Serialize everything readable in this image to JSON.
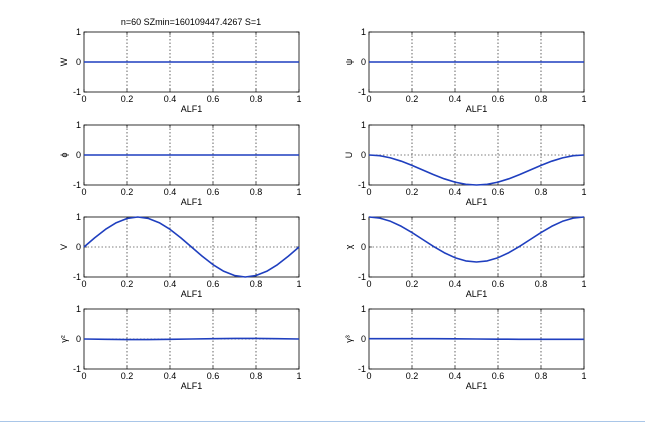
{
  "figure": {
    "title": "n=60 SZmin=160109447.4267 S=1"
  },
  "colors": {
    "line": "#1f3fbf",
    "axes": "#000000",
    "grid": "#000000",
    "background": "#ffffff"
  },
  "chart_data": [
    {
      "type": "line",
      "title": "n=60 SZmin=160109447.4267 S=1",
      "xlabel": "ALF1",
      "ylabel": "W",
      "xlim": [
        0,
        1
      ],
      "ylim": [
        -1,
        1
      ],
      "xticks": [
        "0",
        "0.2",
        "0.4",
        "0.6",
        "0.8",
        "1"
      ],
      "yticks": [
        "-1",
        "0",
        "1"
      ],
      "grid": "x-dotted-with-zero-line",
      "x": [
        0,
        1
      ],
      "y": [
        0,
        0
      ]
    },
    {
      "type": "line",
      "title": "",
      "xlabel": "ALF1",
      "ylabel": "ψ",
      "xlim": [
        0,
        1
      ],
      "ylim": [
        -1,
        1
      ],
      "xticks": [
        "0",
        "0.2",
        "0.4",
        "0.6",
        "0.8",
        "1"
      ],
      "yticks": [
        "-1",
        "0",
        "1"
      ],
      "grid": "x-dotted-with-zero-line",
      "x": [
        0,
        1
      ],
      "y": [
        0,
        0
      ]
    },
    {
      "type": "line",
      "title": "",
      "xlabel": "ALF1",
      "ylabel": "ϕ",
      "xlim": [
        0,
        1
      ],
      "ylim": [
        -1,
        1
      ],
      "xticks": [
        "0",
        "0.2",
        "0.4",
        "0.6",
        "0.8",
        "1"
      ],
      "yticks": [
        "-1",
        "0",
        "1"
      ],
      "grid": "x-dotted-with-zero-line",
      "x": [
        0,
        1
      ],
      "y": [
        0,
        0
      ]
    },
    {
      "type": "line",
      "title": "",
      "xlabel": "ALF1",
      "ylabel": "U",
      "xlim": [
        0,
        1
      ],
      "ylim": [
        -1,
        1
      ],
      "xticks": [
        "0",
        "0.2",
        "0.4",
        "0.6",
        "0.8",
        "1"
      ],
      "yticks": [
        "-1",
        "0",
        "1"
      ],
      "grid": "x-dotted-with-zero-line",
      "x": [
        0,
        0.05,
        0.1,
        0.15,
        0.2,
        0.25,
        0.3,
        0.35,
        0.4,
        0.45,
        0.5,
        0.55,
        0.6,
        0.65,
        0.7,
        0.75,
        0.8,
        0.85,
        0.9,
        0.95,
        1
      ],
      "y": [
        0,
        -0.024,
        -0.095,
        -0.206,
        -0.345,
        -0.5,
        -0.655,
        -0.794,
        -0.905,
        -0.976,
        -1,
        -0.976,
        -0.905,
        -0.794,
        -0.655,
        -0.5,
        -0.345,
        -0.206,
        -0.095,
        -0.024,
        0
      ]
    },
    {
      "type": "line",
      "title": "",
      "xlabel": "ALF1",
      "ylabel": "V",
      "xlim": [
        0,
        1
      ],
      "ylim": [
        -1,
        1
      ],
      "xticks": [
        "0",
        "0.2",
        "0.4",
        "0.6",
        "0.8",
        "1"
      ],
      "yticks": [
        "-1",
        "0",
        "1"
      ],
      "grid": "x-dotted-with-zero-line",
      "x": [
        0,
        0.05,
        0.1,
        0.15,
        0.2,
        0.25,
        0.3,
        0.35,
        0.4,
        0.45,
        0.5,
        0.55,
        0.6,
        0.65,
        0.7,
        0.75,
        0.8,
        0.85,
        0.9,
        0.95,
        1
      ],
      "y": [
        0,
        0.309,
        0.588,
        0.809,
        0.951,
        1,
        0.951,
        0.809,
        0.588,
        0.309,
        0,
        -0.309,
        -0.588,
        -0.809,
        -0.951,
        -1,
        -0.951,
        -0.809,
        -0.588,
        -0.309,
        0
      ]
    },
    {
      "type": "line",
      "title": "",
      "xlabel": "ALF1",
      "ylabel": "χ",
      "xlim": [
        0,
        1
      ],
      "ylim": [
        -1,
        1
      ],
      "xticks": [
        "0",
        "0.2",
        "0.4",
        "0.6",
        "0.8",
        "1"
      ],
      "yticks": [
        "-1",
        "0",
        "1"
      ],
      "grid": "x-dotted-with-zero-line",
      "x": [
        0,
        0.05,
        0.1,
        0.15,
        0.2,
        0.25,
        0.3,
        0.35,
        0.4,
        0.45,
        0.5,
        0.55,
        0.6,
        0.65,
        0.7,
        0.75,
        0.8,
        0.85,
        0.9,
        0.95,
        1
      ],
      "y": [
        1,
        0.964,
        0.857,
        0.691,
        0.482,
        0.25,
        0.018,
        -0.191,
        -0.357,
        -0.464,
        -0.5,
        -0.464,
        -0.357,
        -0.191,
        0.018,
        0.25,
        0.482,
        0.691,
        0.857,
        0.964,
        1
      ]
    },
    {
      "type": "line",
      "title": "",
      "xlabel": "ALF1",
      "ylabel": "γ²",
      "xlim": [
        0,
        1
      ],
      "ylim": [
        -1,
        1
      ],
      "xticks": [
        "0",
        "0.2",
        "0.4",
        "0.6",
        "0.8",
        "1"
      ],
      "yticks": [
        "-1",
        "0",
        "1"
      ],
      "grid": "x-dotted-with-zero-line",
      "x": [
        0,
        0.1,
        0.2,
        0.25,
        0.3,
        0.4,
        0.5,
        0.6,
        0.7,
        0.75,
        0.8,
        0.9,
        1
      ],
      "y": [
        0,
        -0.01,
        -0.02,
        -0.02,
        -0.02,
        -0.01,
        0,
        0.01,
        0.02,
        0.02,
        0.02,
        0.01,
        0
      ]
    },
    {
      "type": "line",
      "title": "",
      "xlabel": "ALF1",
      "ylabel": "γ³",
      "xlim": [
        0,
        1
      ],
      "ylim": [
        -1,
        1
      ],
      "xticks": [
        "0",
        "0.2",
        "0.4",
        "0.6",
        "0.8",
        "1"
      ],
      "yticks": [
        "-1",
        "0",
        "1"
      ],
      "grid": "x-dotted-with-zero-line",
      "x": [
        0,
        0.1,
        0.2,
        0.3,
        0.4,
        0.5,
        0.6,
        0.7,
        0.8,
        0.9,
        1
      ],
      "y": [
        0.01,
        0.01,
        0.01,
        0.01,
        0.005,
        0,
        -0.005,
        -0.01,
        -0.01,
        -0.01,
        -0.01
      ]
    }
  ]
}
